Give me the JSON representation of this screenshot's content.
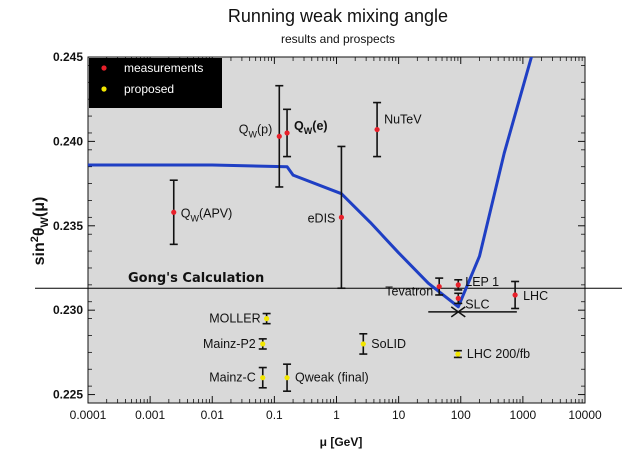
{
  "chart_data": {
    "type": "scatter",
    "title": "Running weak mixing angle",
    "subtitle": "results and prospects",
    "xlabel": "μ [GeV]",
    "ylabel_base": "sin",
    "ylabel_sup": "2",
    "ylabel_theta": "θ",
    "ylabel_sub": "W",
    "ylabel_arg": "(μ)",
    "x_scale": "log",
    "xlim": [
      0.0001,
      10000
    ],
    "ylim": [
      0.2245,
      0.245
    ],
    "x_ticks": [
      {
        "value": 0.0001,
        "label": "0.0001"
      },
      {
        "value": 0.001,
        "label": "0.001"
      },
      {
        "value": 0.01,
        "label": "0.01"
      },
      {
        "value": 0.1,
        "label": "0.1"
      },
      {
        "value": 1,
        "label": "1"
      },
      {
        "value": 10,
        "label": "10"
      },
      {
        "value": 100,
        "label": "100"
      },
      {
        "value": 1000,
        "label": "1000"
      },
      {
        "value": 10000,
        "label": "10000"
      }
    ],
    "y_ticks": [
      {
        "value": 0.225,
        "label": "0.225"
      },
      {
        "value": 0.23,
        "label": "0.230"
      },
      {
        "value": 0.235,
        "label": "0.235"
      },
      {
        "value": 0.24,
        "label": "0.240"
      },
      {
        "value": 0.245,
        "label": "0.245"
      }
    ],
    "legend": {
      "placement": "top-left",
      "background": "#000000",
      "entries": [
        {
          "label": "measurements",
          "color": "#e8202a"
        },
        {
          "label": "proposed",
          "color": "#f2e600"
        }
      ]
    },
    "curve": {
      "color": "#1f3fc4",
      "points": [
        [
          0.0001,
          0.2386
        ],
        [
          0.01,
          0.2386
        ],
        [
          0.16,
          0.2385
        ],
        [
          0.2,
          0.238
        ],
        [
          1.2,
          0.2369
        ],
        [
          3.5,
          0.2352
        ],
        [
          10,
          0.2334
        ],
        [
          30,
          0.2316
        ],
        [
          91.19,
          0.2302
        ],
        [
          200,
          0.2332
        ],
        [
          500,
          0.2393
        ],
        [
          1500,
          0.2455
        ]
      ]
    },
    "reference_line": {
      "value": 0.2313,
      "label": "Gong's Calculation",
      "color": "#000000"
    },
    "measurements": [
      {
        "label": "Q",
        "sub": "W",
        "suffix": "(APV)",
        "x": 0.0024,
        "y": 0.2358,
        "yerr": 0.0019
      },
      {
        "label": "Q",
        "sub": "W",
        "suffix": "(p)",
        "x": 0.12,
        "y": 0.2403,
        "yerr": 0.003
      },
      {
        "label": "Q",
        "sub": "W",
        "suffix": "(e)",
        "x": 0.16,
        "y": 0.2405,
        "yerr": 0.0014,
        "bold": true
      },
      {
        "label": "eDIS",
        "x": 1.2,
        "y": 0.2355,
        "yerr": 0.0042
      },
      {
        "label": "NuTeV",
        "x": 4.5,
        "y": 0.2407,
        "yerr": 0.0016
      },
      {
        "label": "Tevatron",
        "x": 45,
        "y": 0.2314,
        "yerr": 0.0005
      },
      {
        "label": "LEP 1",
        "x": 91.19,
        "y": 0.2315,
        "yerr": 0.0003
      },
      {
        "label": "SLC",
        "x": 91.19,
        "y": 0.2307,
        "yerr": 0.0003
      },
      {
        "label": "LHC",
        "x": 750,
        "y": 0.2309,
        "yerr": 0.0008
      }
    ],
    "proposed": [
      {
        "label": "MOLLER",
        "x": 0.075,
        "y": 0.2295,
        "yerr": 0.0003
      },
      {
        "label": "Mainz-P2",
        "x": 0.065,
        "y": 0.228,
        "yerr": 0.0003
      },
      {
        "label": "SoLID",
        "x": 2.7,
        "y": 0.228,
        "yerr": 0.0006
      },
      {
        "label": "Mainz-C",
        "x": 0.065,
        "y": 0.226,
        "yerr": 0.0006
      },
      {
        "label": "Qweak (final)",
        "x": 0.16,
        "y": 0.226,
        "yerr": 0.0008
      },
      {
        "label": "LHC 200/fb",
        "x": 90,
        "y": 0.2274,
        "yerr": 0.0002
      }
    ],
    "range_arrow": {
      "y": 0.2299,
      "x_start": 30,
      "x_center": 91.19,
      "x_end": 800
    },
    "colors": {
      "plot_background": "#d9d9d9",
      "measurement": "#e8202a",
      "proposed": "#f2e600",
      "errorbar": "#111111",
      "curve": "#1f3fc4"
    }
  }
}
